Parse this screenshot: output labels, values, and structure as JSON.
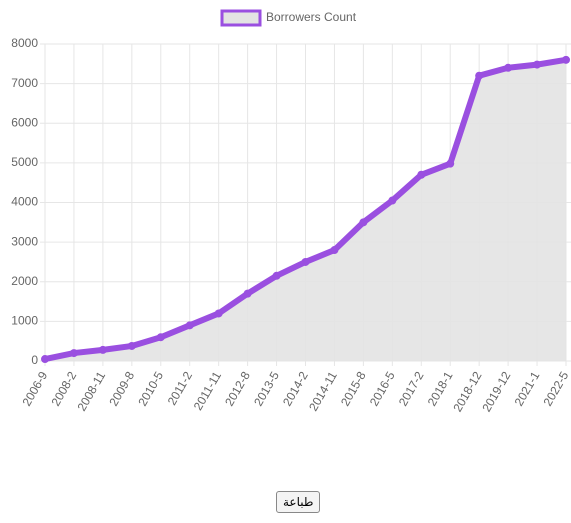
{
  "chart_data": {
    "type": "line",
    "series": [
      {
        "name": "Borrowers Count",
        "color": "#9a4fe0",
        "values": [
          50,
          200,
          280,
          380,
          600,
          900,
          1200,
          1700,
          2150,
          2500,
          2800,
          3500,
          4050,
          4700,
          4980,
          7200,
          7400,
          7480,
          7600
        ]
      }
    ],
    "categories": [
      "2006-9",
      "2008-2",
      "2008-11",
      "2009-8",
      "2010-5",
      "2011-2",
      "2011-11",
      "2012-8",
      "2013-5",
      "2014-2",
      "2014-11",
      "2015-8",
      "2016-5",
      "2017-2",
      "2018-1",
      "2018-12",
      "2019-12",
      "2021-1",
      "2022-5"
    ],
    "ylim": [
      0,
      8000
    ],
    "yticks": [
      0,
      1000,
      2000,
      3000,
      4000,
      5000,
      6000,
      7000,
      8000
    ],
    "grid": true,
    "legend": "top",
    "fill": "#e3e3e3"
  },
  "button": {
    "label": "طباعة"
  }
}
